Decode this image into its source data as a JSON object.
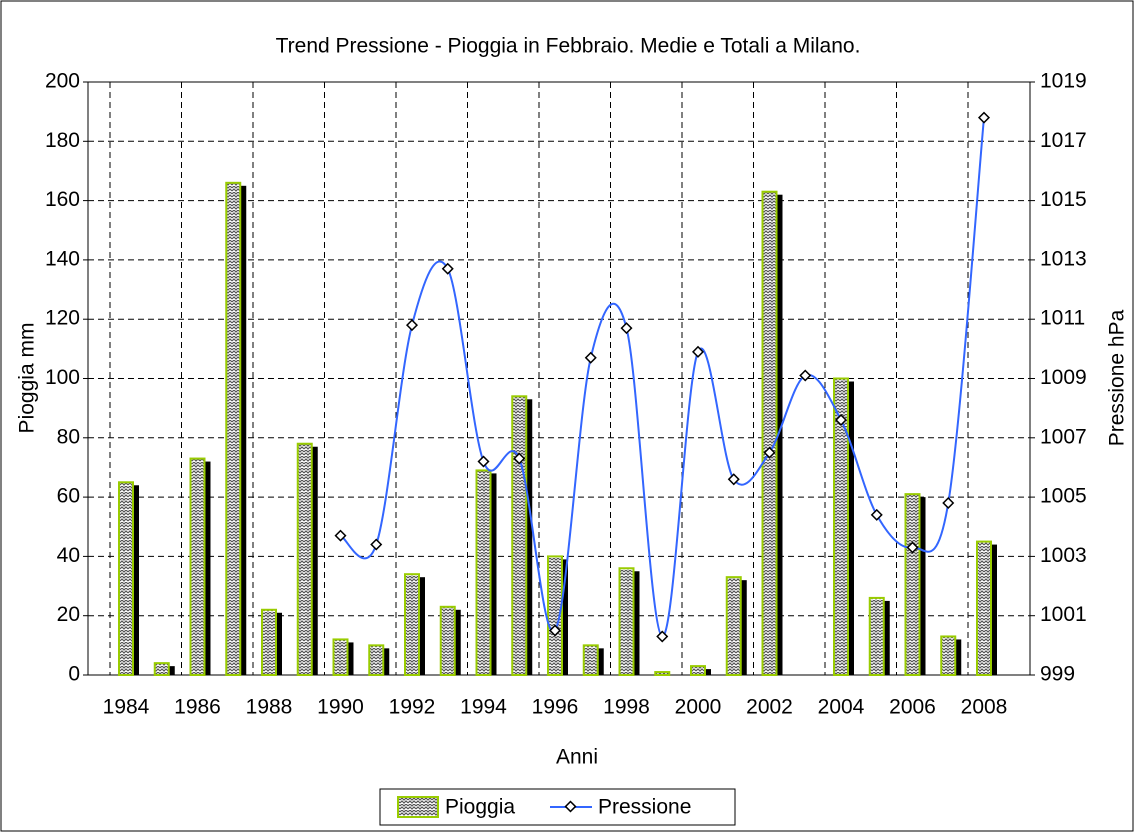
{
  "chart_data": {
    "type": "bar_line",
    "title": "Trend Pressione - Pioggia in Febbraio.  Medie e Totali a Milano.",
    "x_label": "Anni",
    "y_label": "Pioggia mm",
    "y2_label": "Pressione hPa",
    "categories": [
      "1984",
      null,
      "1986",
      null,
      "1988",
      null,
      "1990",
      null,
      "1992",
      null,
      "1994",
      null,
      "1996",
      null,
      "1998",
      null,
      "2000",
      null,
      "2002",
      null,
      "2004",
      null,
      "2006",
      null,
      "2008"
    ],
    "series": [
      {
        "name": "Pioggia",
        "color": "#99cc00",
        "values": [
          65,
          4,
          73,
          166,
          22,
          78,
          12,
          10,
          34,
          23,
          69,
          94,
          40,
          10,
          36,
          1,
          3,
          33,
          163,
          0,
          100,
          26,
          61,
          13,
          45
        ]
      },
      {
        "name": "Pressione",
        "color": "#3366ff",
        "axis": "y2",
        "values": [
          null,
          null,
          null,
          null,
          null,
          null,
          1003.7,
          1003.4,
          1010.8,
          1012.7,
          1006.2,
          1006.3,
          1000.5,
          1009.7,
          1010.7,
          1000.3,
          1009.9,
          1005.6,
          1006.5,
          1009.1,
          1007.6,
          1004.4,
          1003.3,
          1004.8,
          1017.8
        ]
      }
    ],
    "ylim": [
      0,
      200
    ],
    "yticks": [
      0,
      20,
      40,
      60,
      80,
      100,
      120,
      140,
      160,
      180,
      200
    ],
    "y2lim": [
      999,
      1019
    ],
    "y2ticks": [
      999,
      1001,
      1003,
      1005,
      1007,
      1009,
      1011,
      1013,
      1015,
      1017,
      1019
    ],
    "grid": true
  }
}
